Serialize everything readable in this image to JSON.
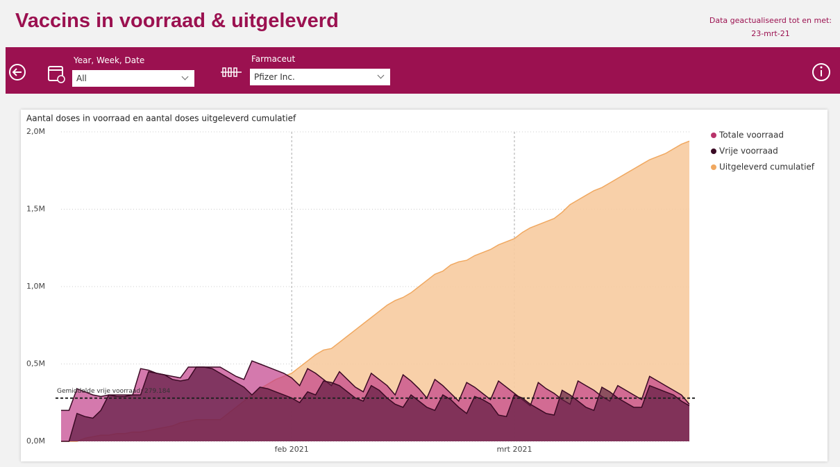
{
  "header": {
    "title": "Vaccins in voorraad & uitgeleverd",
    "updated_label": "Data geactualiseerd tot en met:",
    "updated_date": "23-mrt-21"
  },
  "filters": [
    {
      "label": "Year, Week, Date",
      "value": "All"
    },
    {
      "label": "Farmaceut",
      "value": "Pfizer Inc."
    }
  ],
  "chart_data": {
    "type": "area",
    "title": "Aantal doses in voorraad en aantal doses uitgeleverd cumulatief",
    "categories": [
      null,
      null,
      null,
      null,
      null,
      null,
      null,
      null,
      null,
      null,
      null,
      null,
      null,
      null,
      null,
      null,
      null,
      null,
      null,
      null,
      null,
      null,
      null,
      null,
      null,
      null,
      null,
      null,
      null,
      "feb 2021",
      null,
      null,
      null,
      null,
      null,
      null,
      null,
      null,
      null,
      null,
      null,
      null,
      null,
      null,
      null,
      null,
      null,
      null,
      null,
      null,
      null,
      null,
      null,
      null,
      null,
      null,
      null,
      "mrt 2021",
      null,
      null,
      null,
      null,
      null,
      null,
      null,
      null,
      null,
      null,
      null,
      null,
      null,
      null,
      null,
      null,
      null,
      null,
      null,
      null,
      null,
      null
    ],
    "series": [
      {
        "name": "Uitgeleverd cumulatief",
        "color": "#f0a860",
        "values": [
          0,
          0,
          0,
          0.02,
          0.03,
          0.04,
          0.04,
          0.05,
          0.05,
          0.06,
          0.06,
          0.07,
          0.08,
          0.09,
          0.1,
          0.12,
          0.13,
          0.14,
          0.14,
          0.14,
          0.14,
          0.18,
          0.22,
          0.26,
          0.3,
          0.34,
          0.37,
          0.4,
          0.42,
          0.44,
          0.48,
          0.52,
          0.56,
          0.59,
          0.6,
          0.64,
          0.68,
          0.72,
          0.76,
          0.8,
          0.84,
          0.88,
          0.91,
          0.93,
          0.96,
          1.0,
          1.04,
          1.08,
          1.1,
          1.14,
          1.16,
          1.17,
          1.2,
          1.22,
          1.24,
          1.27,
          1.29,
          1.31,
          1.35,
          1.38,
          1.4,
          1.42,
          1.44,
          1.48,
          1.53,
          1.56,
          1.59,
          1.62,
          1.64,
          1.67,
          1.7,
          1.73,
          1.76,
          1.79,
          1.82,
          1.84,
          1.86,
          1.89,
          1.92,
          1.94
        ]
      },
      {
        "name": "Totale voorraad",
        "color": "#b8336a",
        "values": [
          0.2,
          0.2,
          0.34,
          0.32,
          0.3,
          0.29,
          0.3,
          0.3,
          0.3,
          0.3,
          0.47,
          0.46,
          0.44,
          0.43,
          0.42,
          0.41,
          0.48,
          0.48,
          0.48,
          0.48,
          0.48,
          0.45,
          0.42,
          0.4,
          0.52,
          0.5,
          0.48,
          0.46,
          0.44,
          0.41,
          0.36,
          0.47,
          0.44,
          0.4,
          0.36,
          0.45,
          0.4,
          0.35,
          0.32,
          0.44,
          0.4,
          0.36,
          0.3,
          0.43,
          0.39,
          0.34,
          0.28,
          0.4,
          0.36,
          0.31,
          0.26,
          0.38,
          0.35,
          0.31,
          0.27,
          0.39,
          0.35,
          0.31,
          0.27,
          0.23,
          0.38,
          0.34,
          0.31,
          0.27,
          0.24,
          0.39,
          0.36,
          0.33,
          0.29,
          0.26,
          0.36,
          0.33,
          0.3,
          0.27,
          0.42,
          0.39,
          0.36,
          0.33,
          0.3,
          0.24
        ]
      },
      {
        "name": "Vrije voorraad",
        "color": "#3a0a24",
        "values": [
          0,
          0,
          0.18,
          0.16,
          0.15,
          0.2,
          0.3,
          0.29,
          0.29,
          0.3,
          0.3,
          0.45,
          0.44,
          0.43,
          0.4,
          0.39,
          0.4,
          0.48,
          0.48,
          0.47,
          0.44,
          0.41,
          0.38,
          0.35,
          0.3,
          0.35,
          0.34,
          0.32,
          0.3,
          0.28,
          0.25,
          0.32,
          0.3,
          0.39,
          0.38,
          0.36,
          0.32,
          0.28,
          0.26,
          0.36,
          0.33,
          0.28,
          0.24,
          0.22,
          0.3,
          0.26,
          0.22,
          0.2,
          0.3,
          0.27,
          0.22,
          0.18,
          0.29,
          0.27,
          0.24,
          0.17,
          0.16,
          0.3,
          0.28,
          0.24,
          0.21,
          0.18,
          0.17,
          0.33,
          0.3,
          0.26,
          0.22,
          0.2,
          0.35,
          0.32,
          0.28,
          0.25,
          0.22,
          0.22,
          0.36,
          0.34,
          0.32,
          0.3,
          0.26,
          0.23
        ]
      }
    ],
    "ylim": [
      0,
      2
    ],
    "yticks": [
      {
        "value": 0,
        "label": "0,0M"
      },
      {
        "value": 0.5,
        "label": "0,5M"
      },
      {
        "value": 1,
        "label": "1,0M"
      },
      {
        "value": 1.5,
        "label": "1,5M"
      },
      {
        "value": 2,
        "label": "2,0M"
      }
    ],
    "grid": true,
    "legend": "right",
    "annotations": [
      {
        "label": "Gemiddelde vrije voorraad: 279.184",
        "value": 0.279184
      }
    ]
  }
}
